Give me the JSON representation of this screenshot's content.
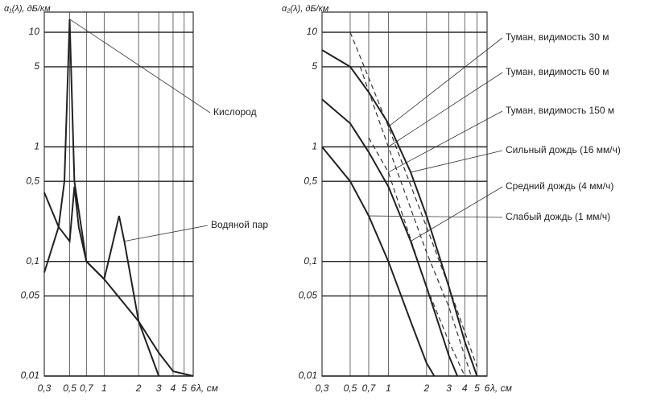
{
  "chart_data": [
    {
      "type": "line",
      "ylabel": "α₁(λ), дБ/км",
      "xlabel": "λ, см",
      "log_x": true,
      "log_y": true,
      "grid": true,
      "xlim": [
        0.3,
        6
      ],
      "ylim": [
        0.01,
        15
      ],
      "xticks": [
        {
          "value": 0.3,
          "label": "0,3"
        },
        {
          "value": 0.5,
          "label": "0,5"
        },
        {
          "value": 0.7,
          "label": "0,7"
        },
        1,
        2,
        3,
        4,
        5,
        6
      ],
      "yticks": [
        {
          "value": 0.01,
          "label": "0,01"
        },
        {
          "value": 0.05,
          "label": "0,05"
        },
        {
          "value": 0.1,
          "label": "0,1"
        },
        {
          "value": 0.5,
          "label": "0,5"
        },
        1,
        5,
        10
      ],
      "series": [
        {
          "name": "Кислород",
          "color": "#222222",
          "style": "solid",
          "x": [
            0.3,
            0.4,
            0.45,
            0.5,
            0.55,
            0.7,
            1,
            2,
            3,
            4,
            6
          ],
          "values": [
            0.08,
            0.2,
            0.5,
            13,
            0.5,
            0.1,
            0.07,
            0.03,
            0.016,
            0.011,
            0.01
          ]
        },
        {
          "name": "Водяной пар",
          "color": "#222222",
          "style": "solid",
          "x": [
            0.3,
            0.4,
            0.5,
            0.55,
            0.6,
            0.7,
            1,
            1.2,
            1.35,
            1.5,
            2,
            3
          ],
          "values": [
            0.4,
            0.2,
            0.15,
            0.45,
            0.2,
            0.1,
            0.07,
            0.15,
            0.25,
            0.15,
            0.03,
            0.01
          ]
        }
      ]
    },
    {
      "type": "line",
      "ylabel": "α₂(λ), дБ/км",
      "xlabel": "λ, см",
      "log_x": true,
      "log_y": true,
      "grid": true,
      "xlim": [
        0.3,
        6
      ],
      "ylim": [
        0.01,
        15
      ],
      "xticks": [
        {
          "value": 0.3,
          "label": "0,3"
        },
        {
          "value": 0.5,
          "label": "0,5"
        },
        {
          "value": 0.7,
          "label": "0,7"
        },
        1,
        2,
        3,
        4,
        5,
        6
      ],
      "yticks": [
        {
          "value": 0.01,
          "label": "0,01"
        },
        {
          "value": 0.05,
          "label": "0,05"
        },
        {
          "value": 0.1,
          "label": "0,1"
        },
        {
          "value": 0.5,
          "label": "0,5"
        },
        1,
        5,
        10
      ],
      "series": [
        {
          "name": "Туман, видимость 30 м",
          "color": "#333333",
          "style": "dashed",
          "x": [
            0.5,
            0.7,
            1,
            2,
            3,
            5
          ],
          "values": [
            10,
            4,
            1.5,
            0.2,
            0.06,
            0.012
          ]
        },
        {
          "name": "Туман, видимость 60 м",
          "color": "#333333",
          "style": "dashed",
          "x": [
            0.6,
            0.8,
            1,
            2,
            3,
            4.5
          ],
          "values": [
            5,
            2,
            1,
            0.12,
            0.04,
            0.01
          ]
        },
        {
          "name": "Туман, видимость 150 м",
          "color": "#333333",
          "style": "dashed",
          "x": [
            0.7,
            1,
            2,
            3,
            4
          ],
          "values": [
            1.2,
            0.6,
            0.06,
            0.02,
            0.01
          ]
        },
        {
          "name": "Сильный дождь (16 мм/ч)",
          "color": "#222222",
          "style": "solid",
          "x": [
            0.3,
            0.5,
            0.7,
            1,
            1.5,
            2,
            3,
            4,
            5
          ],
          "values": [
            7,
            5,
            3,
            1.6,
            0.6,
            0.25,
            0.06,
            0.02,
            0.01
          ]
        },
        {
          "name": "Средний дождь (4 мм/ч)",
          "color": "#222222",
          "style": "solid",
          "x": [
            0.3,
            0.5,
            0.7,
            1,
            1.5,
            2,
            3,
            3.5
          ],
          "values": [
            2.6,
            1.6,
            0.9,
            0.45,
            0.15,
            0.06,
            0.015,
            0.01
          ]
        },
        {
          "name": "Слабый дождь (1 мм/ч)",
          "color": "#222222",
          "style": "solid",
          "x": [
            0.3,
            0.5,
            0.7,
            1,
            1.5,
            2,
            2.3
          ],
          "values": [
            1,
            0.5,
            0.25,
            0.1,
            0.03,
            0.013,
            0.01
          ]
        }
      ]
    }
  ]
}
